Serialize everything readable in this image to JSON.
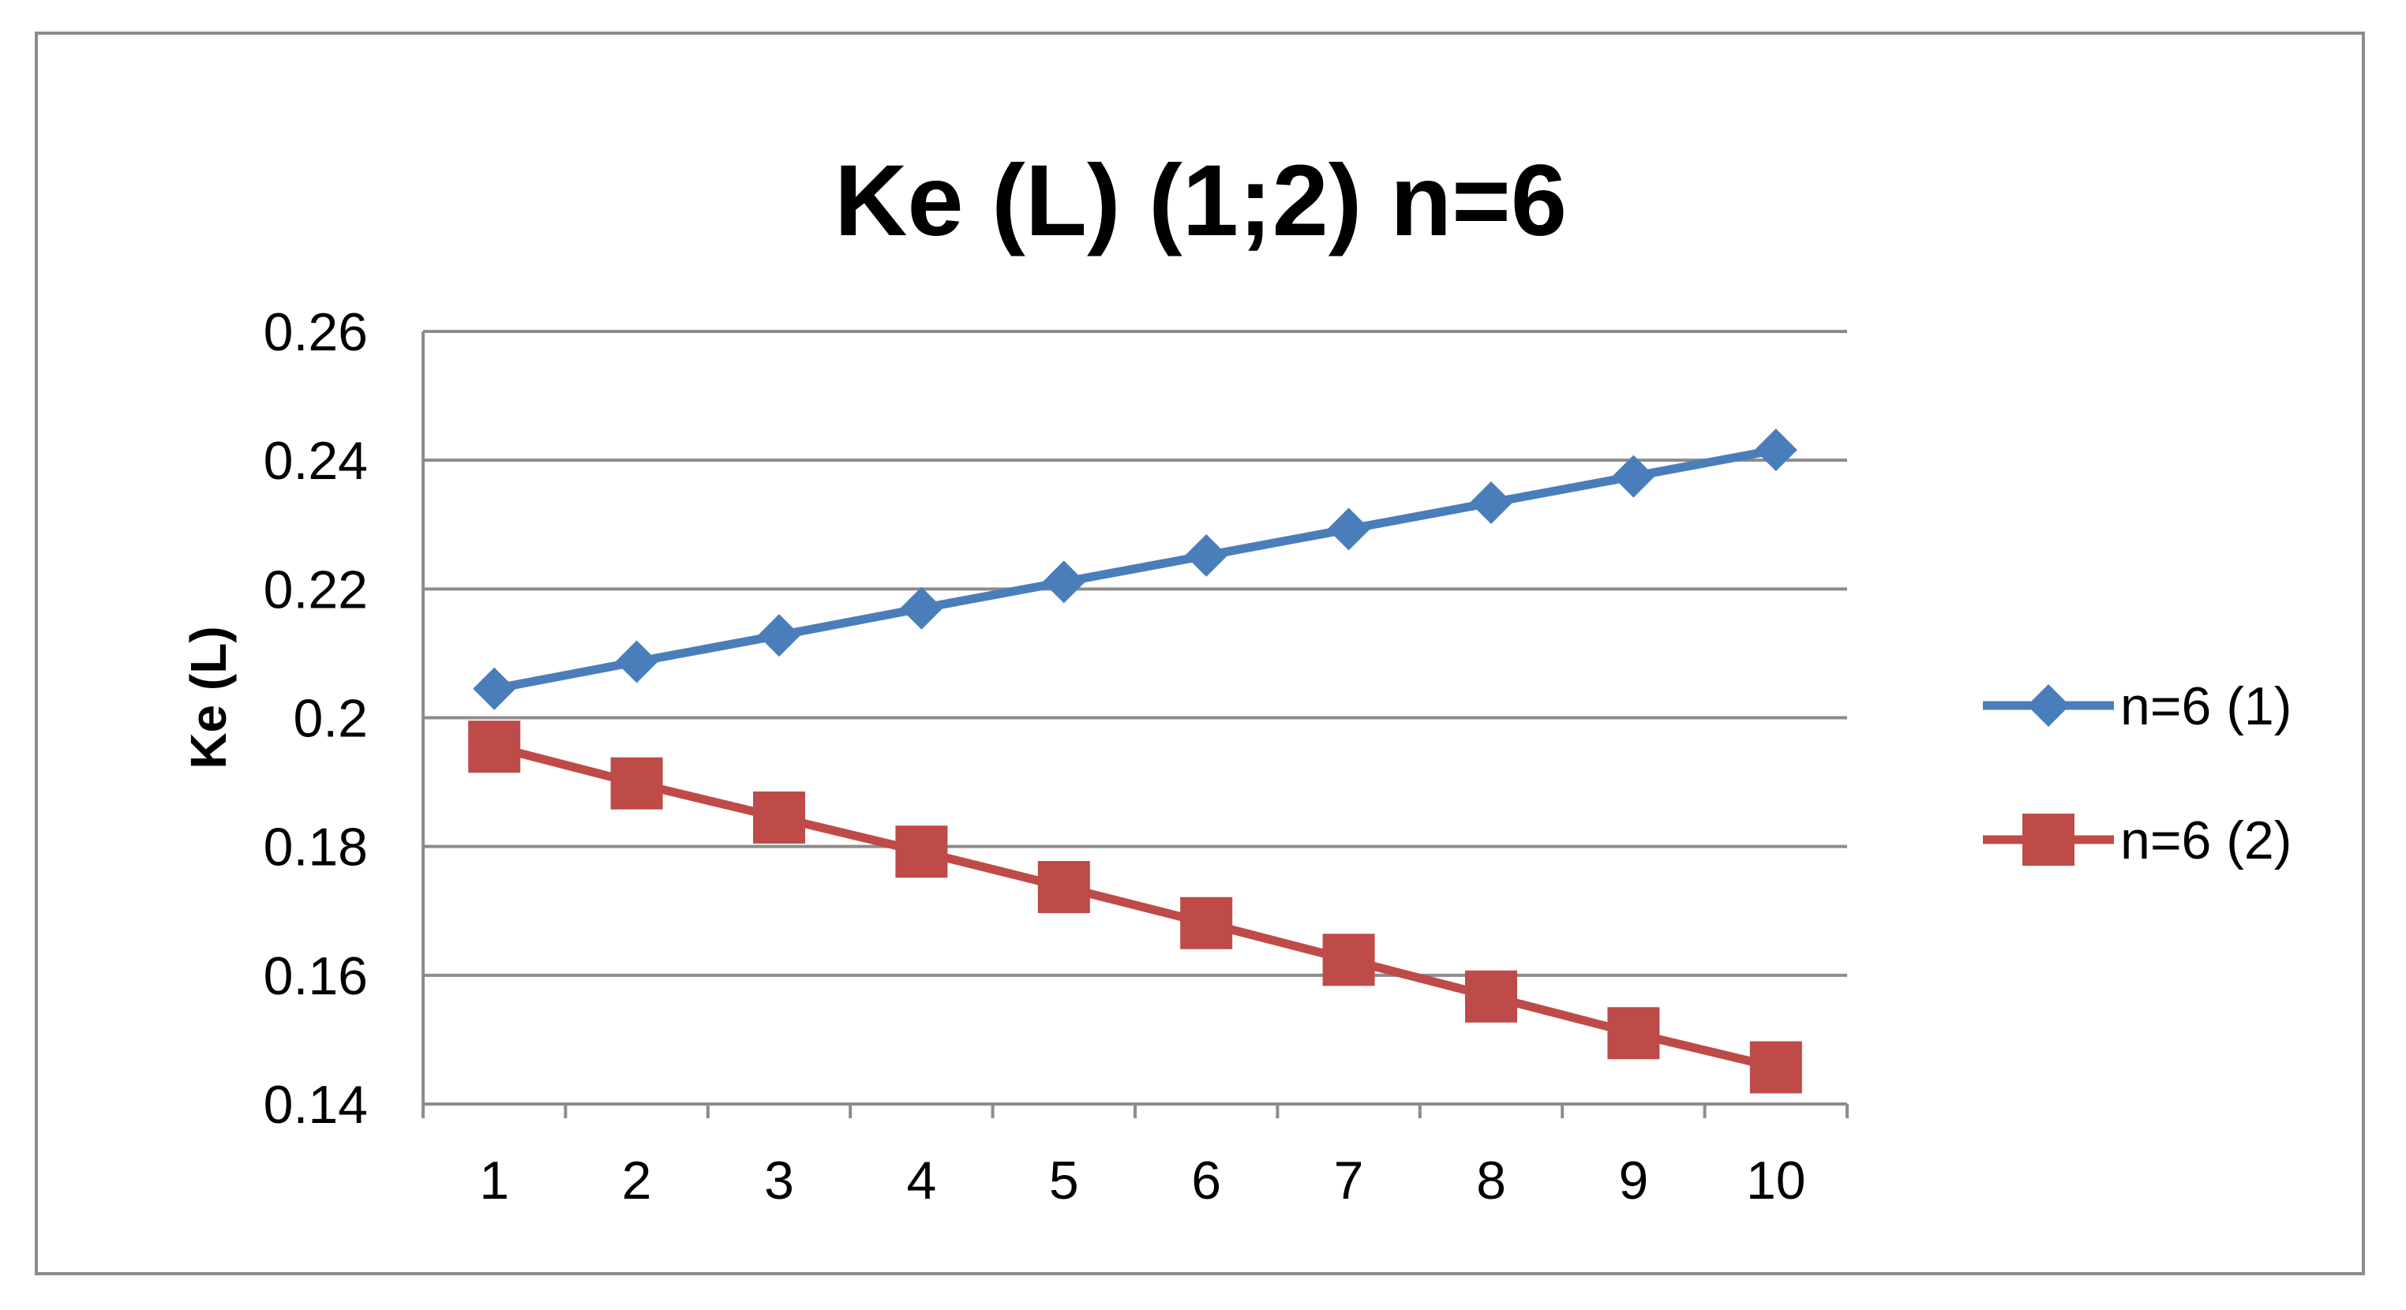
{
  "chart_data": {
    "type": "line",
    "title": "Ke (L) (1;2) n=6",
    "xlabel": "",
    "ylabel": "Ke (L)",
    "categories": [
      "1",
      "2",
      "3",
      "4",
      "5",
      "6",
      "7",
      "8",
      "9",
      "10"
    ],
    "ylim": [
      0.14,
      0.26
    ],
    "yticks": [
      "0.14",
      "0.16",
      "0.18",
      "0.2",
      "0.22",
      "0.24",
      "0.26"
    ],
    "grid": true,
    "legend_position": "right",
    "series": [
      {
        "name": "n=6 (1)",
        "color": "#4a7ebb",
        "marker": "diamond",
        "values": [
          0.2045,
          0.2087,
          0.2128,
          0.217,
          0.2211,
          0.2252,
          0.2293,
          0.2334,
          0.2375,
          0.2416
        ]
      },
      {
        "name": "n=6 (2)",
        "color": "#be4b48",
        "marker": "square",
        "values": [
          0.1955,
          0.1898,
          0.1845,
          0.1792,
          0.1737,
          0.1681,
          0.1624,
          0.1567,
          0.151,
          0.1457
        ]
      }
    ]
  }
}
